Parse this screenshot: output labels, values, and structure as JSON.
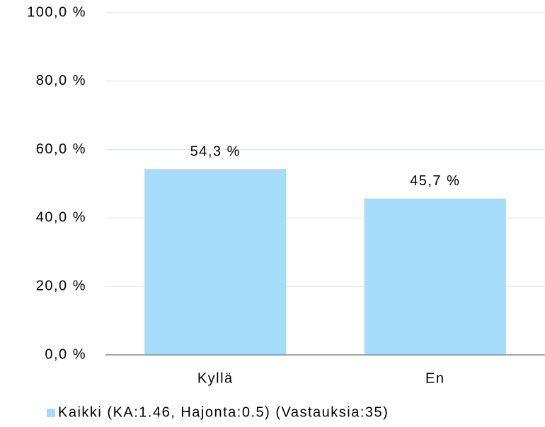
{
  "chart_data": {
    "type": "bar",
    "categories": [
      "Kyllä",
      "En"
    ],
    "series": [
      {
        "name": "Kaikki (KA:1.46, Hajonta:0.5) (Vastauksia:35)",
        "color": "#a6dcfb",
        "values": [
          54.3,
          45.7
        ],
        "value_labels": [
          "54,3 %",
          "45,7 %"
        ]
      }
    ],
    "ylim": [
      0,
      100
    ],
    "yticks": [
      {
        "value": 0,
        "label": "0,0 %"
      },
      {
        "value": 20,
        "label": "20,0 %"
      },
      {
        "value": 40,
        "label": "40,0 %"
      },
      {
        "value": 60,
        "label": "60,0 %"
      },
      {
        "value": 80,
        "label": "80,0 %"
      },
      {
        "value": 100,
        "label": "100,0 %"
      }
    ],
    "grid": true,
    "legend": "bottom"
  }
}
